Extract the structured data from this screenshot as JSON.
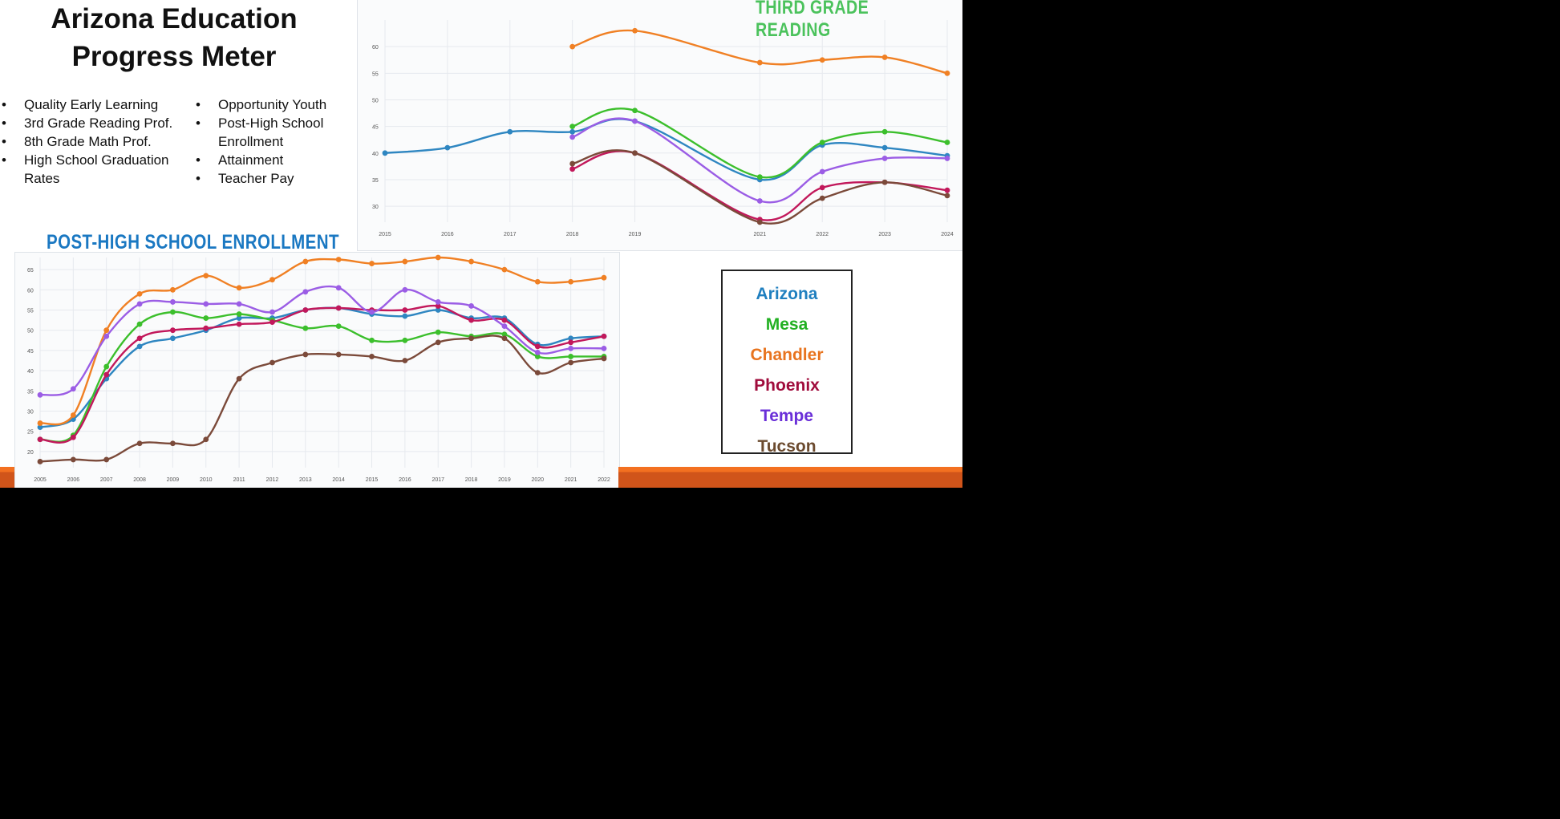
{
  "title": {
    "line1": "Arizona Education",
    "line2": "Progress Meter"
  },
  "metrics_left": [
    "Quality Early Learning",
    "3rd Grade Reading Prof.",
    "8th Grade Math Prof.",
    "High School Graduation Rates"
  ],
  "metrics_right": [
    "Opportunity Youth",
    "Post-High School Enrollment",
    "Attainment",
    "Teacher Pay"
  ],
  "legend": [
    {
      "label": "Arizona",
      "color": "#1f7fbf"
    },
    {
      "label": "Mesa",
      "color": "#22b022"
    },
    {
      "label": "Chandler",
      "color": "#e8741f"
    },
    {
      "label": "Phoenix",
      "color": "#a00c3c"
    },
    {
      "label": "Tempe",
      "color": "#6a2fd8"
    },
    {
      "label": "Tucson",
      "color": "#6b4a2e"
    }
  ],
  "colors": {
    "slide_accent": "#f37020",
    "grid": "#e6e9ee",
    "tick_text": "#555555"
  },
  "chart_data": [
    {
      "type": "line",
      "title": "THIRD GRADE READING",
      "xlabel": "",
      "ylabel": "",
      "x": [
        2015,
        2016,
        2017,
        2018,
        2019,
        2021,
        2022,
        2023,
        2024
      ],
      "x_ticks": [
        2015,
        2016,
        2017,
        2018,
        2019,
        2021,
        2022,
        2023,
        2024
      ],
      "y_ticks": [
        30,
        35,
        40,
        45,
        50,
        55,
        60
      ],
      "ylim": [
        27,
        65
      ],
      "grid": true,
      "legend_position": "none",
      "series": [
        {
          "name": "Arizona",
          "color": "#2e86c1",
          "values": [
            40,
            41,
            44,
            44,
            46,
            35,
            41.5,
            41,
            39.5
          ]
        },
        {
          "name": "Mesa",
          "color": "#3cbf2c",
          "values": [
            null,
            null,
            null,
            45,
            48,
            35.5,
            42,
            44,
            42
          ]
        },
        {
          "name": "Chandler",
          "color": "#f08024",
          "values": [
            null,
            null,
            null,
            60,
            63,
            57,
            57.5,
            58,
            55
          ]
        },
        {
          "name": "Phoenix",
          "color": "#c2185b",
          "values": [
            null,
            null,
            null,
            37,
            40,
            27.5,
            33.5,
            34.5,
            33
          ]
        },
        {
          "name": "Tempe",
          "color": "#9b5de5",
          "values": [
            null,
            null,
            null,
            43,
            46,
            31,
            36.5,
            39,
            39
          ]
        },
        {
          "name": "Tucson",
          "color": "#7b4a3a",
          "values": [
            null,
            null,
            null,
            38,
            40,
            27,
            31.5,
            34.5,
            32
          ]
        }
      ]
    },
    {
      "type": "line",
      "title": "POST-HIGH SCHOOL ENROLLMENT",
      "xlabel": "",
      "ylabel": "",
      "x": [
        2005,
        2006,
        2007,
        2008,
        2009,
        2010,
        2011,
        2012,
        2013,
        2014,
        2015,
        2016,
        2017,
        2018,
        2019,
        2020,
        2021,
        2022
      ],
      "x_ticks": [
        2005,
        2006,
        2007,
        2008,
        2009,
        2010,
        2011,
        2012,
        2013,
        2014,
        2015,
        2016,
        2017,
        2018,
        2019,
        2020,
        2021,
        2022
      ],
      "y_ticks": [
        20,
        25,
        30,
        35,
        40,
        45,
        50,
        55,
        60,
        65
      ],
      "ylim": [
        16,
        68
      ],
      "grid": true,
      "legend_position": "none",
      "series": [
        {
          "name": "Arizona",
          "color": "#2e86c1",
          "values": [
            26,
            28,
            38,
            46,
            48,
            50,
            53,
            53,
            55,
            55.5,
            54,
            53.5,
            55,
            53,
            53,
            46.5,
            48,
            48.5
          ]
        },
        {
          "name": "Mesa",
          "color": "#3cbf2c",
          "values": [
            23,
            24,
            41,
            51.5,
            54.5,
            53,
            54,
            52.5,
            50.5,
            51,
            47.5,
            47.5,
            49.5,
            48.5,
            49,
            43.5,
            43.5,
            43.5
          ]
        },
        {
          "name": "Chandler",
          "color": "#f08024",
          "values": [
            27,
            29,
            50,
            59,
            60,
            63.5,
            60.5,
            62.5,
            67,
            67.5,
            66.5,
            67,
            68,
            67,
            65,
            62,
            62,
            63
          ]
        },
        {
          "name": "Phoenix",
          "color": "#c2185b",
          "values": [
            23,
            23.5,
            39,
            48,
            50,
            50.5,
            51.5,
            52,
            55,
            55.5,
            55,
            55,
            56,
            52.5,
            52.5,
            46,
            47,
            48.5
          ]
        },
        {
          "name": "Tempe",
          "color": "#9b5de5",
          "values": [
            34,
            35.5,
            48.5,
            56.5,
            57,
            56.5,
            56.5,
            54.5,
            59.5,
            60.5,
            54.5,
            60,
            57,
            56,
            51,
            44.5,
            45.5,
            45.5
          ]
        },
        {
          "name": "Tucson",
          "color": "#7b4a3a",
          "values": [
            17.5,
            18,
            18,
            22,
            22,
            23,
            38,
            42,
            44,
            44,
            43.5,
            42.5,
            47,
            48,
            48,
            39.5,
            42,
            43
          ]
        }
      ]
    }
  ]
}
